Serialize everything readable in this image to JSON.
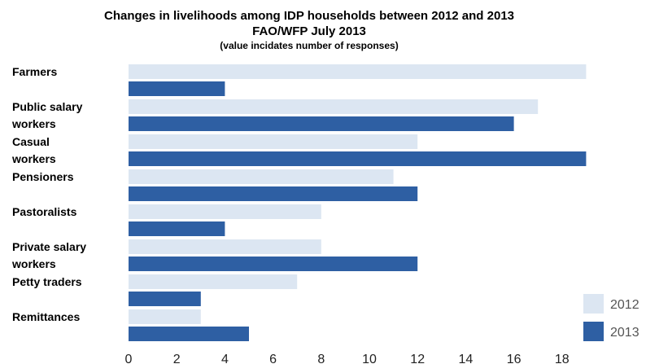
{
  "title": {
    "line1": "Changes in livelihoods among IDP households between 2012 and 2013",
    "line2": "FAO/WFP July 2013",
    "line3": "(value incidates number of responses)"
  },
  "chart_data": {
    "type": "bar",
    "orientation": "horizontal",
    "categories": [
      [
        "Farmers"
      ],
      [
        "Public salary",
        "workers"
      ],
      [
        "Casual",
        "workers"
      ],
      [
        "Pensioners"
      ],
      [
        "Pastoralists"
      ],
      [
        "Private salary",
        "workers"
      ],
      [
        "Petty traders"
      ],
      [
        "Remittances"
      ]
    ],
    "series": [
      {
        "name": "2012",
        "color": "#dce6f2",
        "values": [
          19,
          17,
          12,
          11,
          8,
          8,
          7,
          3
        ]
      },
      {
        "name": "2013",
        "color": "#2e5fa3",
        "values": [
          4,
          16,
          19,
          12,
          4,
          12,
          3,
          5
        ]
      }
    ],
    "xlim": [
      0,
      19
    ],
    "xticks": [
      0,
      2,
      4,
      6,
      8,
      10,
      12,
      14,
      16,
      18
    ],
    "grid": false,
    "legend_position": "bottom-right"
  }
}
